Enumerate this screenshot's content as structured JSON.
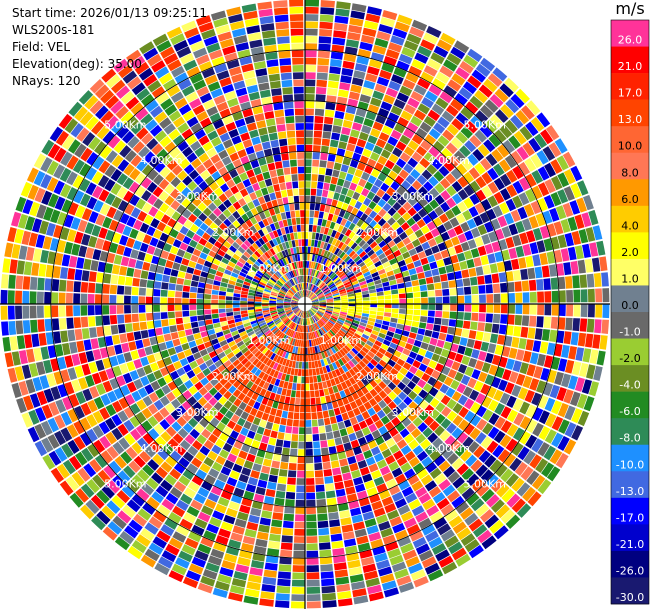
{
  "info": {
    "start_time": "Start time: 2026/01/13 09:25:11",
    "instrument": "WLS200s-181",
    "field": "Field: VEL",
    "elevation": "Elevation(deg): 35.00",
    "nrays": "NRays: 120"
  },
  "colorbar": {
    "unit": "m/s",
    "levels": [
      {
        "label": "26.0",
        "color": "#ff3399"
      },
      {
        "label": "21.0",
        "color": "#ff0000"
      },
      {
        "label": "17.0",
        "color": "#ff2200"
      },
      {
        "label": "13.0",
        "color": "#ff4400"
      },
      {
        "label": "10.0",
        "color": "#ff6633"
      },
      {
        "label": "8.0",
        "color": "#ff7755"
      },
      {
        "label": "6.0",
        "color": "#ff9900"
      },
      {
        "label": "4.0",
        "color": "#ffcc00"
      },
      {
        "label": "2.0",
        "color": "#ffff00"
      },
      {
        "label": "1.0",
        "color": "#ffff66"
      },
      {
        "label": "0.0",
        "color": "#708090"
      },
      {
        "label": "-1.0",
        "color": "#696969"
      },
      {
        "label": "-2.0",
        "color": "#9acd32"
      },
      {
        "label": "-4.0",
        "color": "#6b8e23"
      },
      {
        "label": "-6.0",
        "color": "#228b22"
      },
      {
        "label": "-8.0",
        "color": "#2e8b57"
      },
      {
        "label": "-10.0",
        "color": "#1e90ff"
      },
      {
        "label": "-13.0",
        "color": "#4169e1"
      },
      {
        "label": "-17.0",
        "color": "#0000ff"
      },
      {
        "label": "-21.0",
        "color": "#0000cd"
      },
      {
        "label": "-26.0",
        "color": "#000080"
      },
      {
        "label": "-30.0",
        "color": "#191970"
      }
    ]
  },
  "chart_data": {
    "type": "heatmap",
    "projection": "polar-ppi",
    "field": "VEL",
    "rays": 120,
    "range_rings_km": [
      1,
      2,
      3,
      4,
      5
    ],
    "range_ring_labels": [
      "1.00Km",
      "2.00Km",
      "3.00Km",
      "4.00Km",
      "5.00Km"
    ],
    "max_range_km": 6,
    "vmin": -30.0,
    "vmax": 30.0,
    "colormap": [
      "#191970",
      "#000080",
      "#0000cd",
      "#0000ff",
      "#4169e1",
      "#1e90ff",
      "#2e8b57",
      "#228b22",
      "#6b8e23",
      "#9acd32",
      "#696969",
      "#708090",
      "#ffff66",
      "#ffff00",
      "#ffcc00",
      "#ff9900",
      "#ff7755",
      "#ff6633",
      "#ff4400",
      "#ff2200",
      "#ff0000",
      "#ff3399"
    ],
    "coherent_regions": [
      {
        "description_color": "#ffff00",
        "azimuth_deg": [
          80,
          100
        ],
        "range_km": [
          0.5,
          2.2
        ]
      },
      {
        "description_color": "#ff4400",
        "azimuth_deg": [
          120,
          230
        ],
        "range_km": [
          0.3,
          2.4
        ]
      }
    ]
  }
}
